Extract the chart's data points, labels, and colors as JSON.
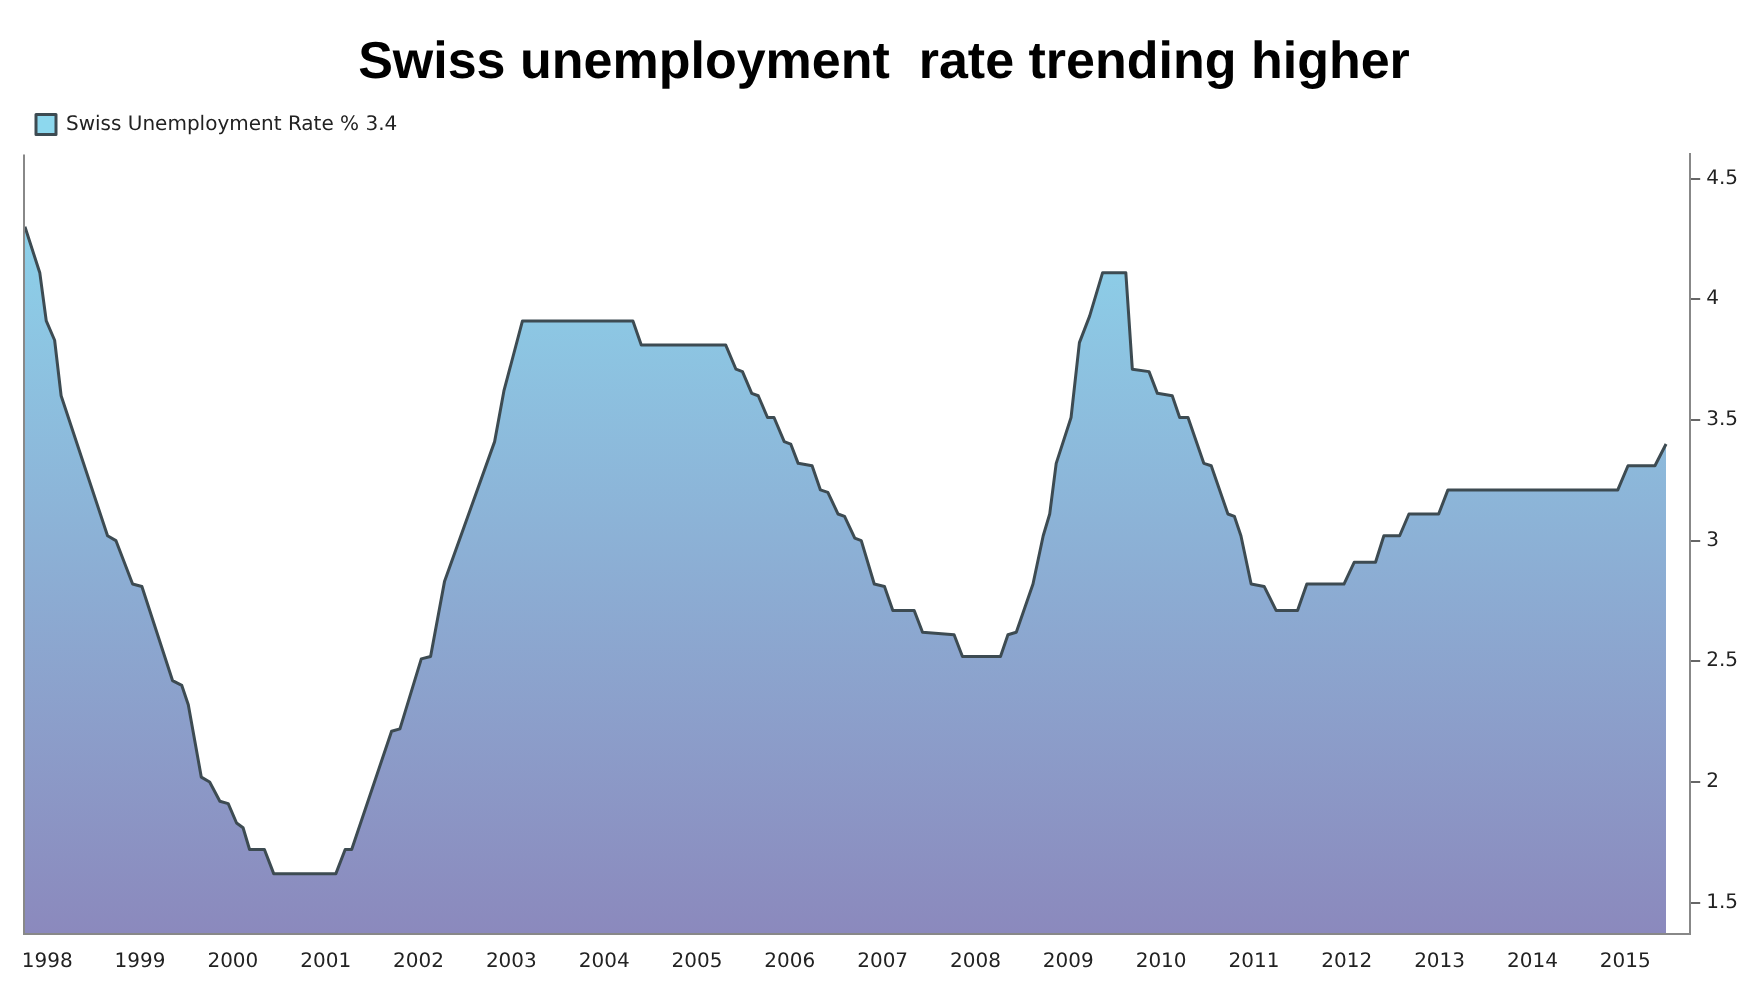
{
  "chart_data": {
    "type": "area",
    "title": "Swiss unemployment  rate trending higher",
    "x": [
      1998.26,
      1998.42,
      1998.49,
      1998.58,
      1998.65,
      1999.15,
      1999.24,
      1999.42,
      1999.52,
      1999.85,
      1999.95,
      2000.02,
      2000.16,
      2000.25,
      2000.36,
      2000.45,
      2000.54,
      2000.61,
      2000.68,
      2000.84,
      2000.94,
      2001.61,
      2001.71,
      2001.78,
      2002.21,
      2002.3,
      2002.53,
      2002.63,
      2002.78,
      2003.32,
      2003.42,
      2003.62,
      2004.81,
      2004.9,
      2005.81,
      2005.92,
      2005.99,
      2006.09,
      2006.16,
      2006.26,
      2006.33,
      2006.44,
      2006.51,
      2006.59,
      2006.74,
      2006.83,
      2006.91,
      2007.02,
      2007.09,
      2007.2,
      2007.27,
      2007.41,
      2007.52,
      2007.61,
      2007.84,
      2007.93,
      2008.27,
      2008.36,
      2008.77,
      2008.85,
      2008.94,
      2009.12,
      2009.23,
      2009.3,
      2009.37,
      2009.53,
      2009.62,
      2009.73,
      2009.87,
      2010.12,
      2010.19,
      2010.37,
      2010.46,
      2010.62,
      2010.7,
      2010.79,
      2010.96,
      2011.04,
      2011.22,
      2011.29,
      2011.36,
      2011.47,
      2011.61,
      2011.74,
      2011.97,
      2012.07,
      2012.47,
      2012.58,
      2012.81,
      2012.9,
      2013.07,
      2013.17,
      2013.49,
      2013.59,
      2015.42,
      2015.53,
      2015.82,
      2015.94
    ],
    "series": [
      {
        "name": "Swiss Unemployment Rate % 3.4",
        "color": "#8dd8ee",
        "values": [
          4.3,
          4.11,
          3.91,
          3.83,
          3.6,
          3.02,
          3.0,
          2.82,
          2.81,
          2.42,
          2.4,
          2.32,
          2.02,
          2.0,
          1.92,
          1.91,
          1.83,
          1.81,
          1.72,
          1.72,
          1.62,
          1.62,
          1.72,
          1.72,
          2.21,
          2.22,
          2.51,
          2.52,
          2.83,
          3.41,
          3.62,
          3.91,
          3.91,
          3.81,
          3.81,
          3.71,
          3.7,
          3.61,
          3.6,
          3.51,
          3.51,
          3.41,
          3.4,
          3.32,
          3.31,
          3.21,
          3.2,
          3.11,
          3.1,
          3.01,
          3.0,
          2.82,
          2.81,
          2.71,
          2.71,
          2.62,
          2.61,
          2.52,
          2.52,
          2.61,
          2.62,
          2.82,
          3.02,
          3.11,
          3.32,
          3.51,
          3.82,
          3.93,
          4.11,
          4.11,
          3.71,
          3.7,
          3.61,
          3.6,
          3.51,
          3.51,
          3.32,
          3.31,
          3.11,
          3.1,
          3.02,
          2.82,
          2.81,
          2.71,
          2.71,
          2.82,
          2.82,
          2.91,
          2.91,
          3.02,
          3.02,
          3.11,
          3.11,
          3.21,
          3.21,
          3.31,
          3.31,
          3.4
        ]
      }
    ],
    "xlim": [
      1998.25,
      2016.2
    ],
    "xticks": [
      {
        "value": 1998.5,
        "label": "1998"
      },
      {
        "value": 1999.5,
        "label": "1999"
      },
      {
        "value": 2000.5,
        "label": "2000"
      },
      {
        "value": 2001.5,
        "label": "2001"
      },
      {
        "value": 2002.5,
        "label": "2002"
      },
      {
        "value": 2003.5,
        "label": "2003"
      },
      {
        "value": 2004.5,
        "label": "2004"
      },
      {
        "value": 2005.5,
        "label": "2005"
      },
      {
        "value": 2006.5,
        "label": "2006"
      },
      {
        "value": 2007.5,
        "label": "2007"
      },
      {
        "value": 2008.5,
        "label": "2008"
      },
      {
        "value": 2009.5,
        "label": "2009"
      },
      {
        "value": 2010.5,
        "label": "2010"
      },
      {
        "value": 2011.5,
        "label": "2011"
      },
      {
        "value": 2012.5,
        "label": "2012"
      },
      {
        "value": 2013.5,
        "label": "2013"
      },
      {
        "value": 2014.5,
        "label": "2014"
      },
      {
        "value": 2015.5,
        "label": "2015"
      }
    ],
    "ylim": [
      1.37,
      4.6
    ],
    "yticks": [
      1.5,
      2,
      2.5,
      3,
      3.5,
      4,
      4.5
    ],
    "grid": false,
    "legend": "top left",
    "line_style": "solid",
    "marker": "none"
  }
}
